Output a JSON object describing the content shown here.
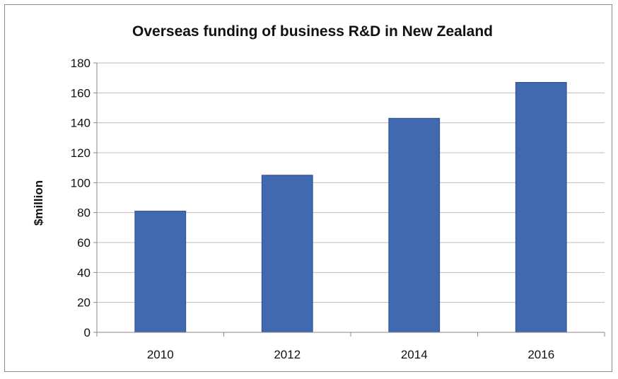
{
  "chart_data": {
    "type": "bar",
    "title": "Overseas funding of business R&D in New Zealand",
    "xlabel": "",
    "ylabel": "$million",
    "categories": [
      "2010",
      "2012",
      "2014",
      "2016"
    ],
    "series": [
      {
        "values": [
          81,
          105,
          143,
          167
        ]
      }
    ],
    "ylim": [
      0,
      180
    ],
    "yticks": [
      0,
      20,
      40,
      60,
      80,
      100,
      120,
      140,
      160,
      180
    ],
    "grid": true,
    "legend": "none",
    "bar_color": "#4169b0",
    "bar_edge_color": "#2e4f8f"
  }
}
